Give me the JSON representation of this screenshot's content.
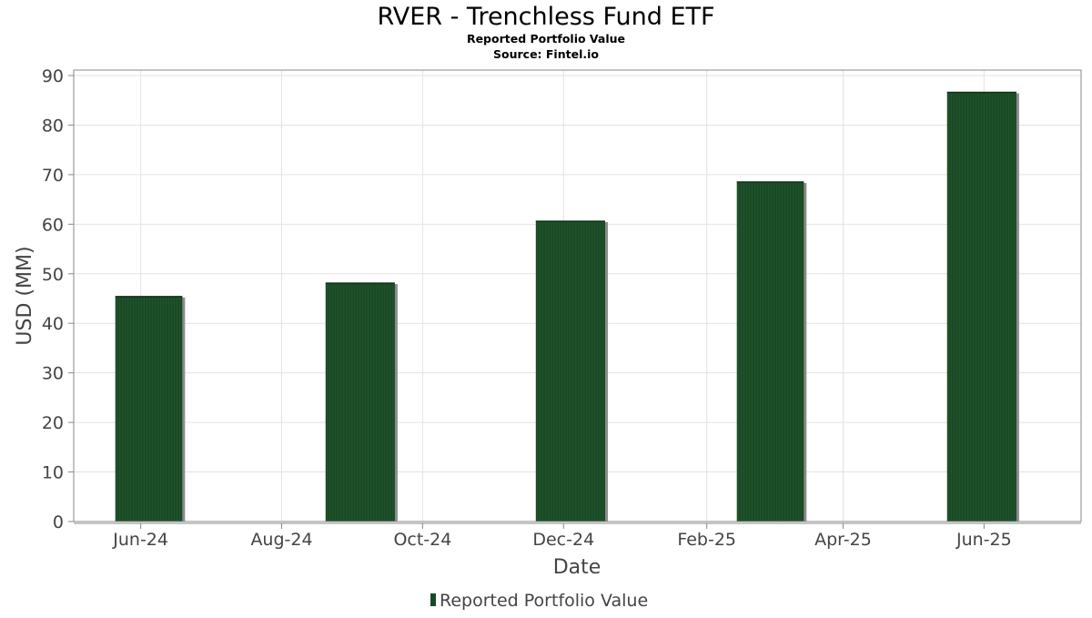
{
  "chart_data": {
    "type": "bar",
    "title": "RVER - Trenchless Fund ETF",
    "subtitle": "Reported Portfolio Value",
    "source": "Source: Fintel.io",
    "xlabel": "Date",
    "ylabel": "USD (MM)",
    "ylim": [
      0,
      90
    ],
    "y_ticks": [
      "0",
      "10",
      "20",
      "30",
      "40",
      "50",
      "60",
      "70",
      "80",
      "90"
    ],
    "x_range": [
      "2024-05-03",
      "2025-07-13"
    ],
    "x_ticks": [
      {
        "date": "2024-06-01",
        "label": "Jun-24"
      },
      {
        "date": "2024-08-01",
        "label": "Aug-24"
      },
      {
        "date": "2024-10-01",
        "label": "Oct-24"
      },
      {
        "date": "2024-12-01",
        "label": "Dec-24"
      },
      {
        "date": "2025-02-01",
        "label": "Feb-25"
      },
      {
        "date": "2025-04-01",
        "label": "Apr-25"
      },
      {
        "date": "2025-06-01",
        "label": "Jun-25"
      }
    ],
    "grid": true,
    "legend": "bottom-center",
    "series": [
      {
        "name": "Reported Portfolio Value",
        "color": "#1a4a24",
        "points": [
          {
            "start": "2024-05-21",
            "end": "2024-06-19",
            "value": 45.4
          },
          {
            "start": "2024-08-20",
            "end": "2024-09-19",
            "value": 48.1
          },
          {
            "start": "2024-11-19",
            "end": "2024-12-19",
            "value": 60.6
          },
          {
            "start": "2025-02-14",
            "end": "2025-03-15",
            "value": 68.5
          },
          {
            "start": "2025-05-16",
            "end": "2025-06-15",
            "value": 86.6
          }
        ]
      }
    ]
  }
}
